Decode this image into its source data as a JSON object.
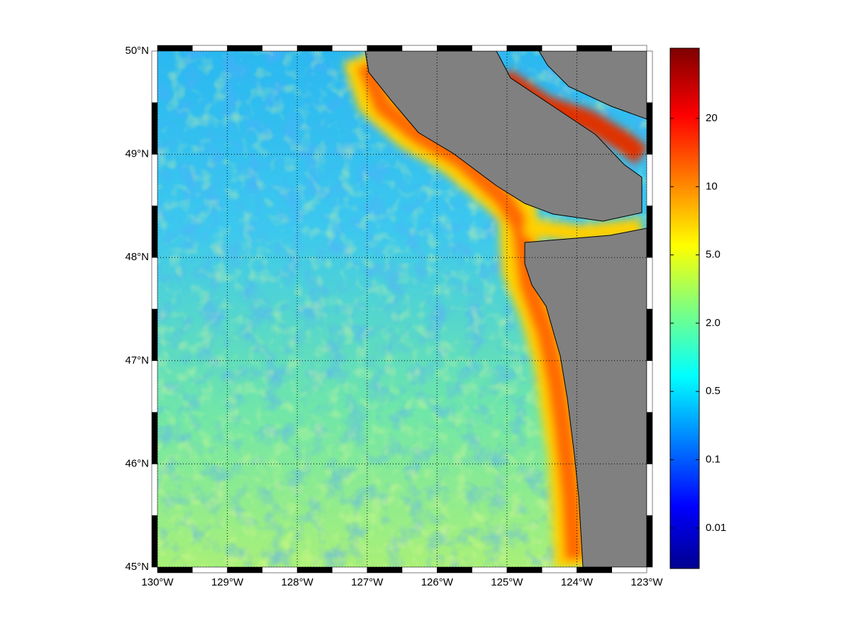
{
  "map": {
    "xlim": [
      -130,
      -123
    ],
    "ylim": [
      45,
      50
    ],
    "lon_ticks": [
      {
        "value": -130,
        "label": "130°W"
      },
      {
        "value": -129,
        "label": "129°W"
      },
      {
        "value": -128,
        "label": "128°W"
      },
      {
        "value": -127,
        "label": "127°W"
      },
      {
        "value": -126,
        "label": "126°W"
      },
      {
        "value": -125,
        "label": "125°W"
      },
      {
        "value": -124,
        "label": "124°W"
      },
      {
        "value": -123,
        "label": "123°W"
      }
    ],
    "lat_ticks": [
      {
        "value": 45,
        "label": "45°N"
      },
      {
        "value": 46,
        "label": "46°N"
      },
      {
        "value": 47,
        "label": "47°N"
      },
      {
        "value": 48,
        "label": "48°N"
      },
      {
        "value": 49,
        "label": "49°N"
      },
      {
        "value": 50,
        "label": "50°N"
      }
    ],
    "grid": true,
    "colorbar": {
      "tick_labels": [
        "20",
        "10",
        "5.0",
        "2.0",
        "0.5",
        "0.1",
        "0.01"
      ]
    }
  }
}
